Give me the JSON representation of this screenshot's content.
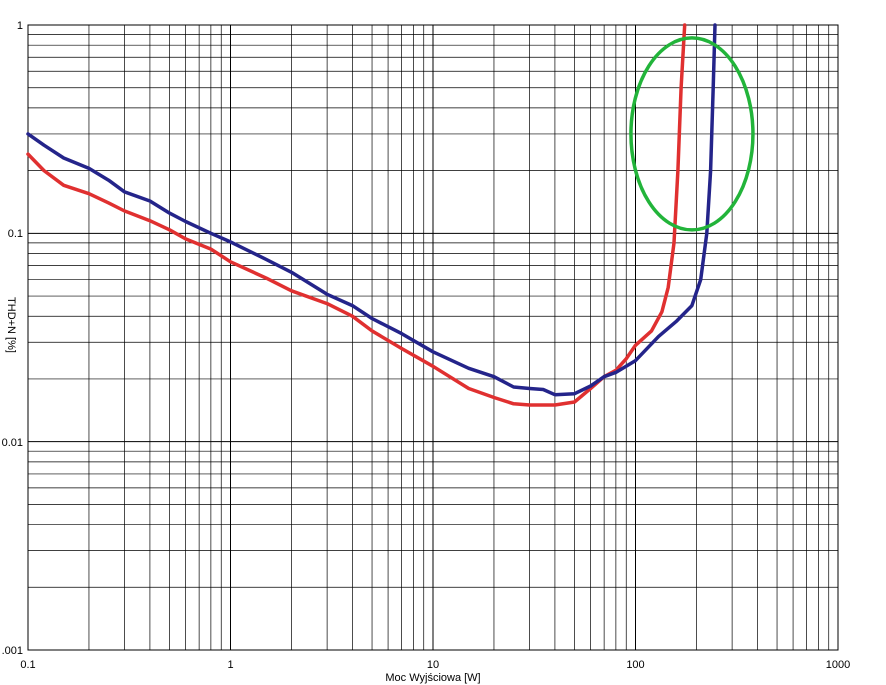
{
  "chart_data": {
    "type": "line",
    "title": "",
    "xlabel": "Moc Wyjściowa [W]",
    "ylabel": "THD+N [%]",
    "x_scale": "log",
    "y_scale": "log",
    "xlim": [
      0.1,
      1000
    ],
    "ylim": [
      0.001,
      1
    ],
    "grid": true,
    "legend": "none",
    "x_ticks": [
      "0.1",
      "1",
      "10",
      "100",
      "1000"
    ],
    "y_ticks": [
      "1",
      "0.1",
      "0.01",
      ".001"
    ],
    "series": [
      {
        "color": "#e03030",
        "points": [
          [
            0.1,
            0.24
          ],
          [
            0.12,
            0.2
          ],
          [
            0.15,
            0.17
          ],
          [
            0.2,
            0.155
          ],
          [
            0.25,
            0.14
          ],
          [
            0.3,
            0.128
          ],
          [
            0.4,
            0.115
          ],
          [
            0.5,
            0.104
          ],
          [
            0.6,
            0.094
          ],
          [
            0.8,
            0.084
          ],
          [
            1,
            0.073
          ],
          [
            1.5,
            0.061
          ],
          [
            2,
            0.053
          ],
          [
            3,
            0.046
          ],
          [
            4,
            0.04
          ],
          [
            5,
            0.034
          ],
          [
            7,
            0.028
          ],
          [
            10,
            0.023
          ],
          [
            15,
            0.018
          ],
          [
            20,
            0.0163
          ],
          [
            25,
            0.0152
          ],
          [
            30,
            0.015
          ],
          [
            40,
            0.015
          ],
          [
            50,
            0.0155
          ],
          [
            60,
            0.018
          ],
          [
            70,
            0.0205
          ],
          [
            80,
            0.022
          ],
          [
            90,
            0.025
          ],
          [
            100,
            0.029
          ],
          [
            120,
            0.034
          ],
          [
            135,
            0.042
          ],
          [
            145,
            0.055
          ],
          [
            155,
            0.09
          ],
          [
            162,
            0.2
          ],
          [
            168,
            0.5
          ],
          [
            175,
            1.0
          ]
        ]
      },
      {
        "color": "#24248a",
        "points": [
          [
            0.1,
            0.3
          ],
          [
            0.12,
            0.265
          ],
          [
            0.15,
            0.23
          ],
          [
            0.2,
            0.205
          ],
          [
            0.25,
            0.18
          ],
          [
            0.3,
            0.158
          ],
          [
            0.4,
            0.143
          ],
          [
            0.5,
            0.125
          ],
          [
            0.6,
            0.114
          ],
          [
            0.8,
            0.1
          ],
          [
            1,
            0.091
          ],
          [
            1.5,
            0.075
          ],
          [
            2,
            0.065
          ],
          [
            3,
            0.051
          ],
          [
            4,
            0.045
          ],
          [
            5,
            0.039
          ],
          [
            7,
            0.033
          ],
          [
            10,
            0.027
          ],
          [
            15,
            0.0225
          ],
          [
            20,
            0.0205
          ],
          [
            25,
            0.0183
          ],
          [
            30,
            0.018
          ],
          [
            35,
            0.0178
          ],
          [
            40,
            0.0168
          ],
          [
            50,
            0.017
          ],
          [
            60,
            0.0185
          ],
          [
            70,
            0.0205
          ],
          [
            80,
            0.0215
          ],
          [
            100,
            0.0245
          ],
          [
            130,
            0.032
          ],
          [
            160,
            0.038
          ],
          [
            190,
            0.045
          ],
          [
            210,
            0.06
          ],
          [
            225,
            0.1
          ],
          [
            235,
            0.2
          ],
          [
            242,
            0.5
          ],
          [
            247,
            1.0
          ]
        ]
      }
    ],
    "annotations": [
      {
        "shape": "ellipse",
        "color": "#22b43a",
        "x_center": 190,
        "y_center": 0.3
      }
    ]
  }
}
